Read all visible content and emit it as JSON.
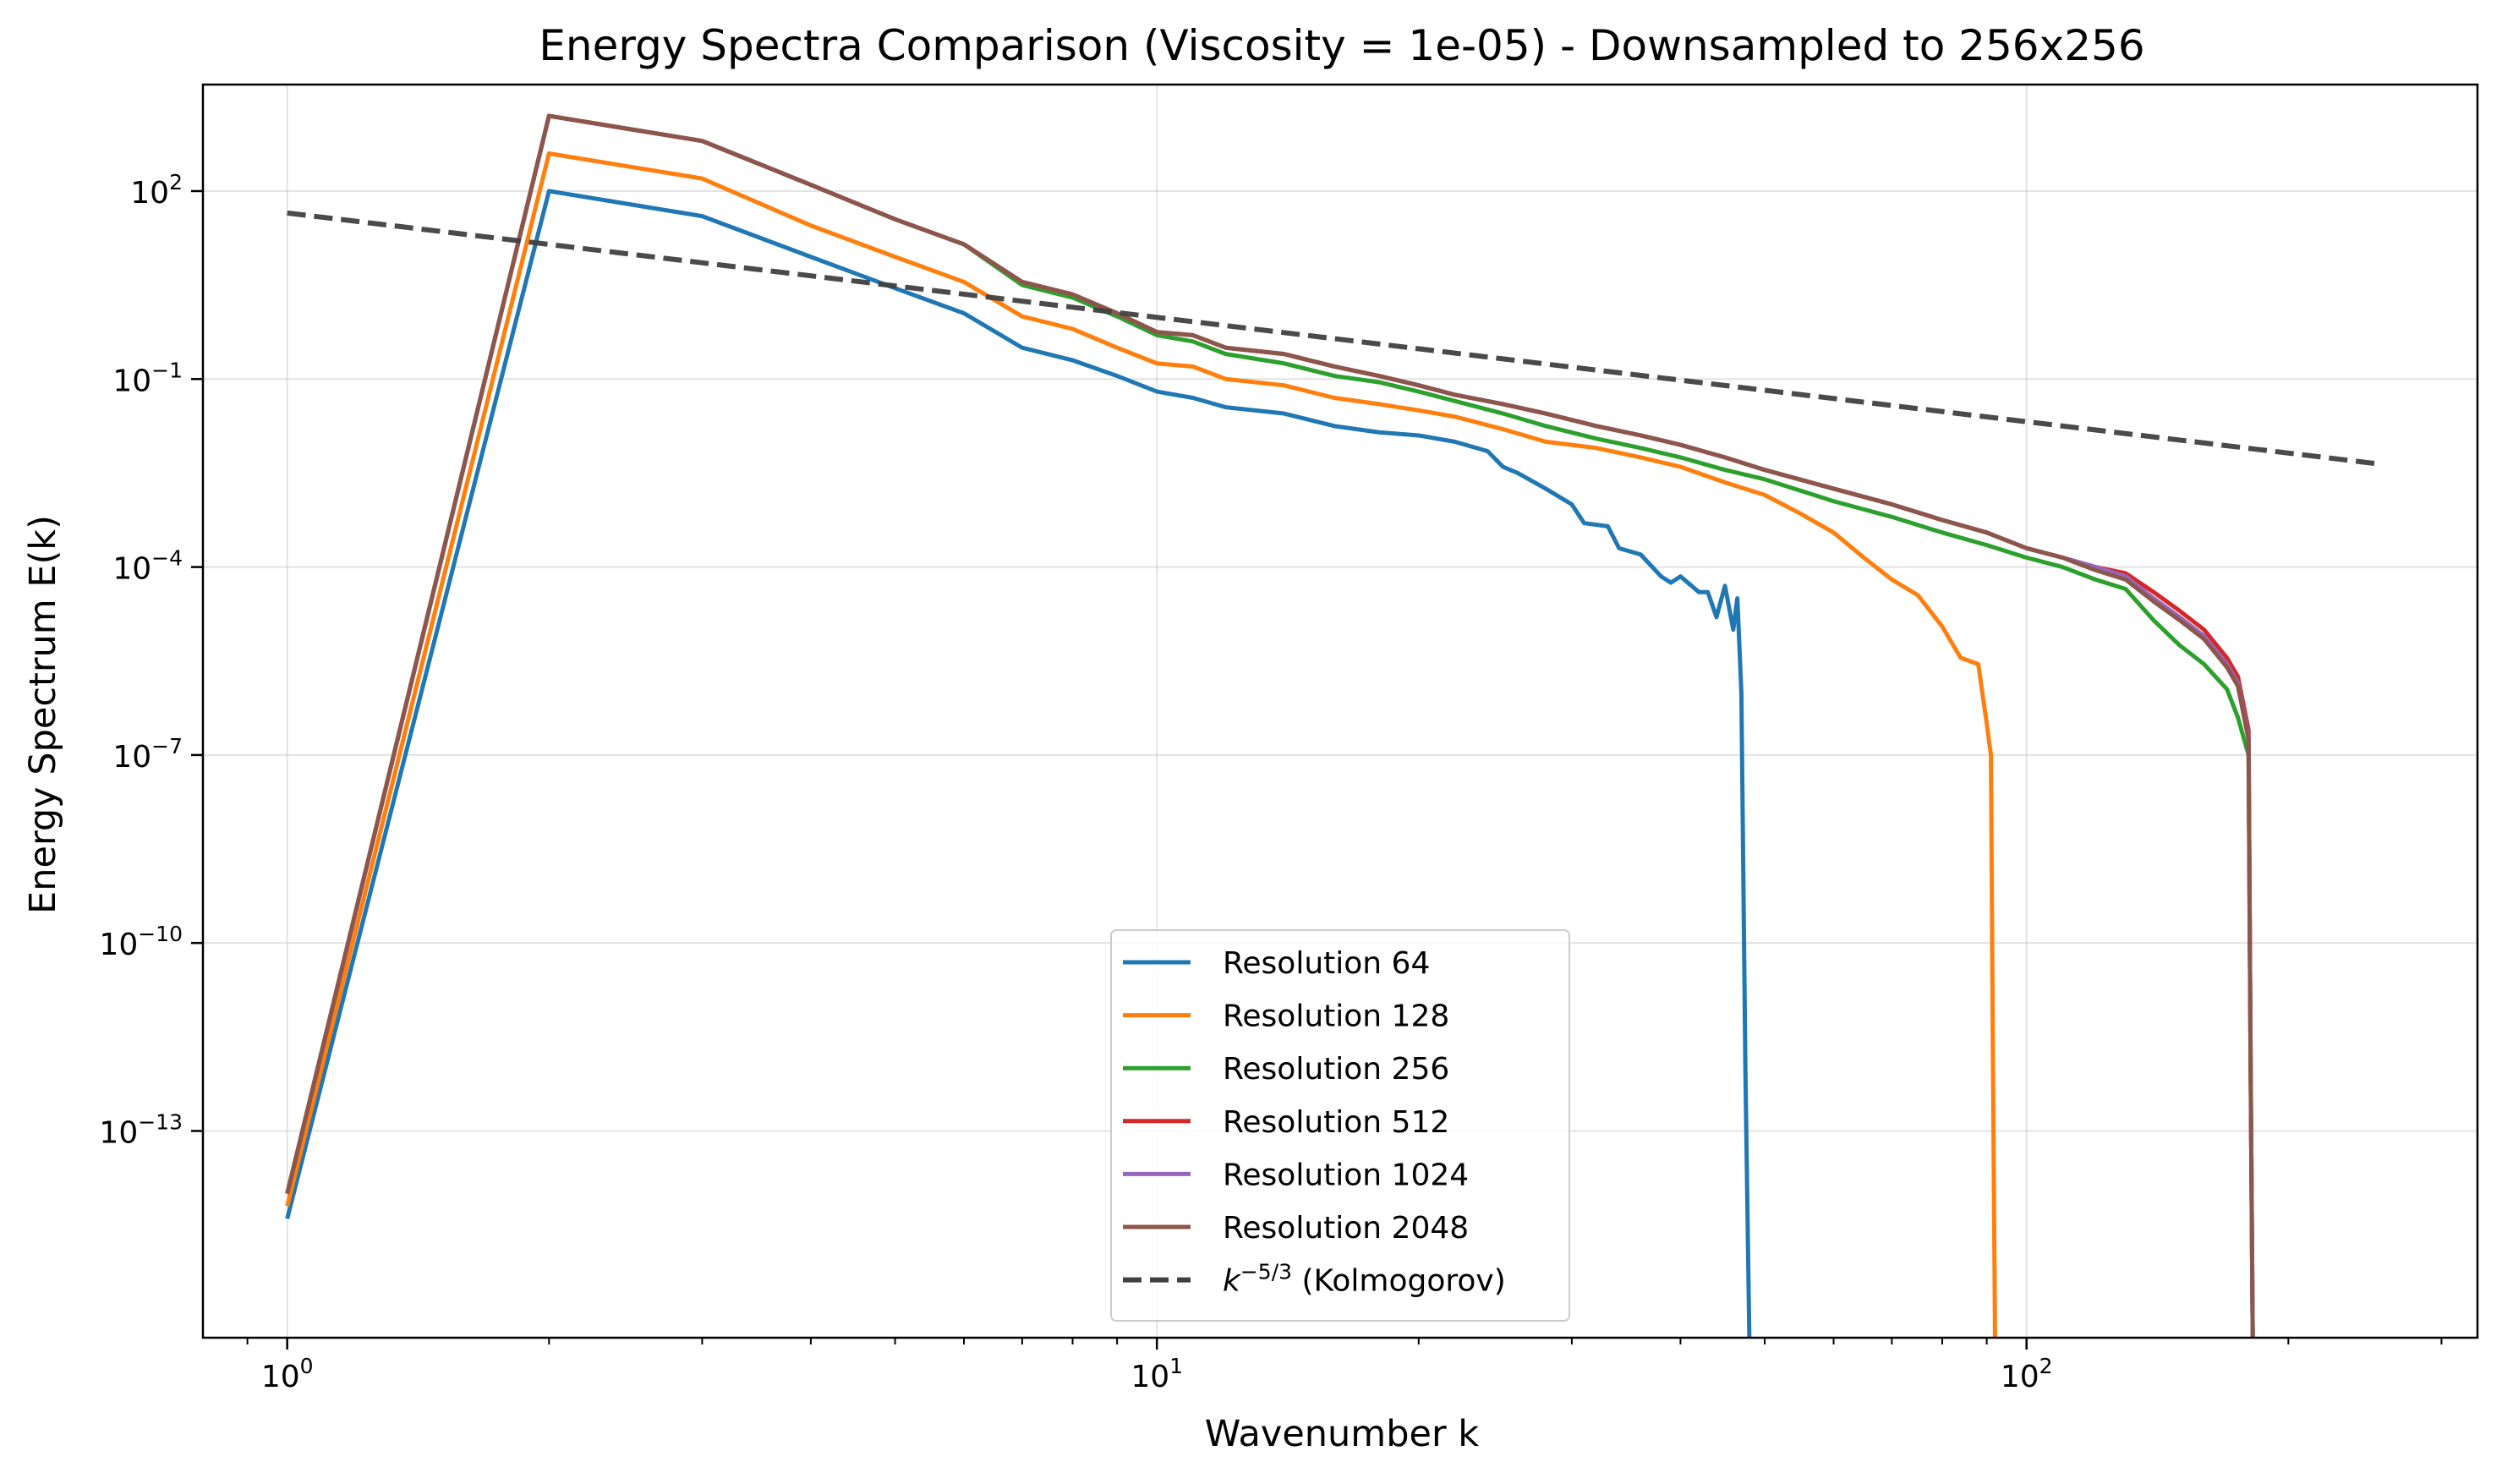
{
  "chart_data": {
    "type": "line",
    "title": "Energy Spectra Comparison (Viscosity = 1e-05) - Downsampled to 256x256",
    "xlabel": "Wavenumber k",
    "ylabel": "Energy Spectrum E(k)",
    "x_scale": "log",
    "y_scale": "log",
    "xlim": [
      0.8,
      330
    ],
    "ylim_log10": [
      -16.3,
      3.7
    ],
    "x_ticks": [
      {
        "log10": 0,
        "base": "10",
        "exp": "0"
      },
      {
        "log10": 1,
        "base": "10",
        "exp": "1"
      },
      {
        "log10": 2,
        "base": "10",
        "exp": "2"
      }
    ],
    "y_ticks": [
      {
        "log10": 2,
        "base": "10",
        "exp": "2"
      },
      {
        "log10": -1,
        "base": "10",
        "exp": "−1"
      },
      {
        "log10": -4,
        "base": "10",
        "exp": "−4"
      },
      {
        "log10": -7,
        "base": "10",
        "exp": "−7"
      },
      {
        "log10": -10,
        "base": "10",
        "exp": "−10"
      },
      {
        "log10": -13,
        "base": "10",
        "exp": "−13"
      }
    ],
    "grid": true,
    "legend_position": "lower-center",
    "series": [
      {
        "name": "Resolution 64",
        "color": "#1f77b4",
        "points_log10": [
          [
            1,
            -14.4
          ],
          [
            2,
            2.0
          ],
          [
            3,
            1.6
          ],
          [
            4,
            0.95
          ],
          [
            5,
            0.45
          ],
          [
            6,
            0.05
          ],
          [
            7,
            -0.5
          ],
          [
            8,
            -0.7
          ],
          [
            9,
            -0.95
          ],
          [
            10,
            -1.2
          ],
          [
            11,
            -1.3
          ],
          [
            12,
            -1.45
          ],
          [
            14,
            -1.55
          ],
          [
            16,
            -1.75
          ],
          [
            18,
            -1.85
          ],
          [
            20,
            -1.9
          ],
          [
            22,
            -2.0
          ],
          [
            24,
            -2.15
          ],
          [
            25,
            -2.4
          ],
          [
            26,
            -2.5
          ],
          [
            28,
            -2.75
          ],
          [
            30,
            -3.0
          ],
          [
            31,
            -3.3
          ],
          [
            33,
            -3.35
          ],
          [
            34,
            -3.7
          ],
          [
            36,
            -3.8
          ],
          [
            38,
            -4.15
          ],
          [
            39,
            -4.25
          ],
          [
            40,
            -4.15
          ],
          [
            42,
            -4.4
          ],
          [
            43,
            -4.4
          ],
          [
            44,
            -4.8
          ],
          [
            45,
            -4.3
          ],
          [
            46,
            -5.0
          ],
          [
            46.5,
            -4.5
          ],
          [
            47,
            -6.0
          ],
          [
            47.5,
            -12.0
          ],
          [
            48,
            -16.3
          ]
        ]
      },
      {
        "name": "Resolution 128",
        "color": "#ff7f0e",
        "points_log10": [
          [
            1,
            -14.2
          ],
          [
            2,
            2.6
          ],
          [
            3,
            2.2
          ],
          [
            4,
            1.45
          ],
          [
            5,
            0.95
          ],
          [
            6,
            0.55
          ],
          [
            7,
            0.0
          ],
          [
            8,
            -0.2
          ],
          [
            9,
            -0.5
          ],
          [
            10,
            -0.75
          ],
          [
            11,
            -0.8
          ],
          [
            12,
            -1.0
          ],
          [
            14,
            -1.1
          ],
          [
            16,
            -1.3
          ],
          [
            18,
            -1.4
          ],
          [
            20,
            -1.5
          ],
          [
            22,
            -1.6
          ],
          [
            25,
            -1.8
          ],
          [
            28,
            -2.0
          ],
          [
            32,
            -2.1
          ],
          [
            36,
            -2.25
          ],
          [
            40,
            -2.4
          ],
          [
            45,
            -2.65
          ],
          [
            50,
            -2.85
          ],
          [
            55,
            -3.15
          ],
          [
            60,
            -3.45
          ],
          [
            65,
            -3.85
          ],
          [
            70,
            -4.2
          ],
          [
            75,
            -4.45
          ],
          [
            80,
            -4.95
          ],
          [
            84,
            -5.45
          ],
          [
            86,
            -5.5
          ],
          [
            88,
            -5.55
          ],
          [
            90,
            -6.5
          ],
          [
            91,
            -7.0
          ],
          [
            91.5,
            -12.0
          ],
          [
            92,
            -16.3
          ]
        ]
      },
      {
        "name": "Resolution 256",
        "color": "#2ca02c",
        "points_log10": [
          [
            1,
            -14.0
          ],
          [
            2,
            3.2
          ],
          [
            3,
            2.8
          ],
          [
            4,
            2.1
          ],
          [
            5,
            1.55
          ],
          [
            6,
            1.15
          ],
          [
            7,
            0.5
          ],
          [
            8,
            0.3
          ],
          [
            9,
            0.0
          ],
          [
            10,
            -0.3
          ],
          [
            11,
            -0.4
          ],
          [
            12,
            -0.6
          ],
          [
            14,
            -0.75
          ],
          [
            16,
            -0.95
          ],
          [
            18,
            -1.05
          ],
          [
            20,
            -1.2
          ],
          [
            22,
            -1.35
          ],
          [
            25,
            -1.55
          ],
          [
            28,
            -1.75
          ],
          [
            32,
            -1.95
          ],
          [
            36,
            -2.1
          ],
          [
            40,
            -2.25
          ],
          [
            45,
            -2.45
          ],
          [
            50,
            -2.6
          ],
          [
            60,
            -2.95
          ],
          [
            70,
            -3.2
          ],
          [
            80,
            -3.45
          ],
          [
            90,
            -3.65
          ],
          [
            100,
            -3.85
          ],
          [
            110,
            -4.0
          ],
          [
            120,
            -4.2
          ],
          [
            130,
            -4.35
          ],
          [
            140,
            -4.85
          ],
          [
            150,
            -5.25
          ],
          [
            160,
            -5.55
          ],
          [
            170,
            -5.95
          ],
          [
            175,
            -6.4
          ],
          [
            180,
            -7.0
          ],
          [
            181,
            -12.0
          ],
          [
            182,
            -16.3
          ]
        ]
      },
      {
        "name": "Resolution 512",
        "color": "#d62728",
        "points_log10": [
          [
            1,
            -14.0
          ],
          [
            2,
            3.2
          ],
          [
            3,
            2.8
          ],
          [
            4,
            2.1
          ],
          [
            5,
            1.55
          ],
          [
            6,
            1.15
          ],
          [
            7,
            0.55
          ],
          [
            8,
            0.35
          ],
          [
            9,
            0.05
          ],
          [
            10,
            -0.25
          ],
          [
            11,
            -0.3
          ],
          [
            12,
            -0.5
          ],
          [
            14,
            -0.6
          ],
          [
            16,
            -0.8
          ],
          [
            18,
            -0.95
          ],
          [
            20,
            -1.1
          ],
          [
            22,
            -1.25
          ],
          [
            25,
            -1.4
          ],
          [
            28,
            -1.55
          ],
          [
            32,
            -1.75
          ],
          [
            36,
            -1.9
          ],
          [
            40,
            -2.05
          ],
          [
            45,
            -2.25
          ],
          [
            50,
            -2.45
          ],
          [
            60,
            -2.75
          ],
          [
            70,
            -3.0
          ],
          [
            80,
            -3.25
          ],
          [
            90,
            -3.45
          ],
          [
            100,
            -3.7
          ],
          [
            110,
            -3.85
          ],
          [
            120,
            -4.0
          ],
          [
            130,
            -4.1
          ],
          [
            140,
            -4.4
          ],
          [
            150,
            -4.7
          ],
          [
            160,
            -5.0
          ],
          [
            170,
            -5.45
          ],
          [
            175,
            -5.75
          ],
          [
            180,
            -6.6
          ],
          [
            181,
            -12.0
          ],
          [
            182,
            -16.3
          ]
        ]
      },
      {
        "name": "Resolution 1024",
        "color": "#9467bd",
        "points_log10": [
          [
            1,
            -14.0
          ],
          [
            2,
            3.2
          ],
          [
            3,
            2.8
          ],
          [
            4,
            2.1
          ],
          [
            5,
            1.55
          ],
          [
            6,
            1.15
          ],
          [
            7,
            0.55
          ],
          [
            8,
            0.35
          ],
          [
            9,
            0.05
          ],
          [
            10,
            -0.25
          ],
          [
            11,
            -0.3
          ],
          [
            12,
            -0.5
          ],
          [
            14,
            -0.6
          ],
          [
            16,
            -0.8
          ],
          [
            18,
            -0.95
          ],
          [
            20,
            -1.1
          ],
          [
            22,
            -1.25
          ],
          [
            25,
            -1.4
          ],
          [
            28,
            -1.55
          ],
          [
            32,
            -1.75
          ],
          [
            36,
            -1.9
          ],
          [
            40,
            -2.05
          ],
          [
            45,
            -2.25
          ],
          [
            50,
            -2.45
          ],
          [
            60,
            -2.75
          ],
          [
            70,
            -3.0
          ],
          [
            80,
            -3.25
          ],
          [
            90,
            -3.45
          ],
          [
            100,
            -3.7
          ],
          [
            110,
            -3.85
          ],
          [
            120,
            -4.0
          ],
          [
            130,
            -4.15
          ],
          [
            140,
            -4.5
          ],
          [
            150,
            -4.8
          ],
          [
            160,
            -5.1
          ],
          [
            170,
            -5.55
          ],
          [
            175,
            -5.85
          ],
          [
            180,
            -6.7
          ],
          [
            181,
            -12.0
          ],
          [
            182,
            -16.3
          ]
        ]
      },
      {
        "name": "Resolution 2048",
        "color": "#8c564b",
        "points_log10": [
          [
            1,
            -14.0
          ],
          [
            2,
            3.2
          ],
          [
            3,
            2.8
          ],
          [
            4,
            2.1
          ],
          [
            5,
            1.55
          ],
          [
            6,
            1.15
          ],
          [
            7,
            0.55
          ],
          [
            8,
            0.35
          ],
          [
            9,
            0.05
          ],
          [
            10,
            -0.25
          ],
          [
            11,
            -0.3
          ],
          [
            12,
            -0.5
          ],
          [
            14,
            -0.6
          ],
          [
            16,
            -0.8
          ],
          [
            18,
            -0.95
          ],
          [
            20,
            -1.1
          ],
          [
            22,
            -1.25
          ],
          [
            25,
            -1.4
          ],
          [
            28,
            -1.55
          ],
          [
            32,
            -1.75
          ],
          [
            36,
            -1.9
          ],
          [
            40,
            -2.05
          ],
          [
            45,
            -2.25
          ],
          [
            50,
            -2.45
          ],
          [
            60,
            -2.75
          ],
          [
            70,
            -3.0
          ],
          [
            80,
            -3.25
          ],
          [
            90,
            -3.45
          ],
          [
            100,
            -3.7
          ],
          [
            110,
            -3.85
          ],
          [
            120,
            -4.05
          ],
          [
            130,
            -4.2
          ],
          [
            140,
            -4.55
          ],
          [
            150,
            -4.85
          ],
          [
            160,
            -5.15
          ],
          [
            170,
            -5.6
          ],
          [
            175,
            -5.9
          ],
          [
            180,
            -6.75
          ],
          [
            181,
            -12.0
          ],
          [
            182,
            -16.3
          ]
        ]
      }
    ],
    "reference_line": {
      "name_prefix": "k",
      "name_exp": "−5/3",
      "name_suffix": " (Kolmogorov)",
      "color": "#404040",
      "dash": true,
      "points_log10": [
        [
          1,
          1.65
        ],
        [
          256,
          -2.36
        ]
      ]
    }
  }
}
